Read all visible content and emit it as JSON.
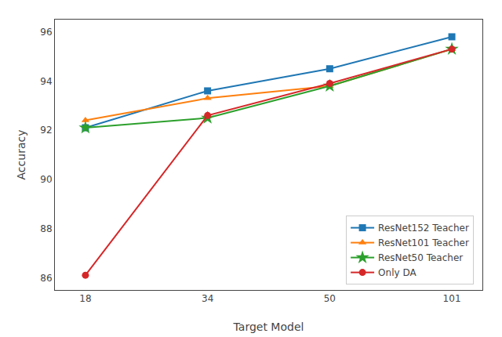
{
  "chart_data": {
    "type": "line",
    "xlabel": "Target Model",
    "ylabel": "Accuracy",
    "categories": [
      "18",
      "34",
      "50",
      "101"
    ],
    "series": [
      {
        "name": "ResNet152 Teacher",
        "color": "#1f77b4",
        "marker": "square",
        "values": [
          92.1,
          93.6,
          94.5,
          95.8
        ]
      },
      {
        "name": "ResNet101 Teacher",
        "color": "#ff7f0e",
        "marker": "triangle-up",
        "values": [
          92.4,
          93.3,
          93.8,
          95.3
        ]
      },
      {
        "name": "ResNet50 Teacher",
        "color": "#2ca02c",
        "marker": "star",
        "values": [
          92.1,
          92.5,
          93.8,
          95.3
        ]
      },
      {
        "name": "Only DA",
        "color": "#d62728",
        "marker": "circle",
        "values": [
          86.1,
          92.6,
          93.9,
          95.3
        ]
      }
    ],
    "ylim": [
      85.5,
      96.5
    ],
    "yticks": [
      86,
      88,
      90,
      92,
      94,
      96
    ],
    "grid": false,
    "legend": "lower right"
  }
}
